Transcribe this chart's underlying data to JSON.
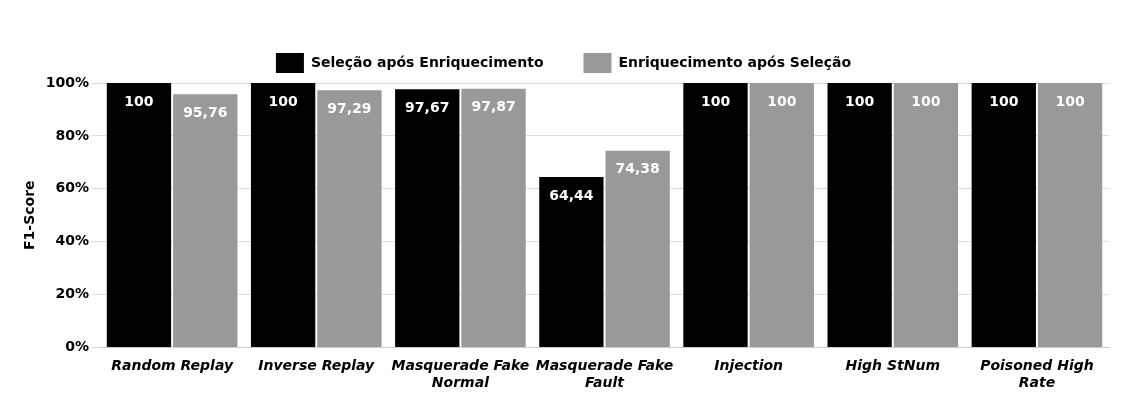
{
  "chart_data": {
    "type": "bar",
    "ylabel": "F1-Score",
    "categories": [
      "Random Replay",
      "Inverse Replay",
      "Masquerade Fake Normal",
      "Masquerade Fake Fault",
      "Injection",
      "High StNum",
      "Poisoned High Rate"
    ],
    "series": [
      {
        "name": "Seleção após Enriquecimento",
        "color": "#000000",
        "values": [
          100,
          100,
          97.67,
          64.44,
          100,
          100,
          100
        ],
        "value_labels": [
          "100",
          "100",
          "97,67",
          "64,44",
          "100",
          "100",
          "100"
        ]
      },
      {
        "name": "Enriquecimento após Seleção",
        "color": "#999999",
        "values": [
          95.76,
          97.29,
          97.87,
          74.38,
          100,
          100,
          100
        ],
        "value_labels": [
          "95,76",
          "97,29",
          "97,87",
          "74,38",
          "100",
          "100",
          "100"
        ]
      }
    ],
    "ylim": [
      0,
      100
    ],
    "yticks": [
      {
        "value": 0,
        "label": "0%"
      },
      {
        "value": 20,
        "label": "20%"
      },
      {
        "value": 40,
        "label": "40%"
      },
      {
        "value": 60,
        "label": "60%"
      },
      {
        "value": 80,
        "label": "80%"
      },
      {
        "value": 100,
        "label": "100%"
      }
    ],
    "grid": "y",
    "legend": "top"
  }
}
